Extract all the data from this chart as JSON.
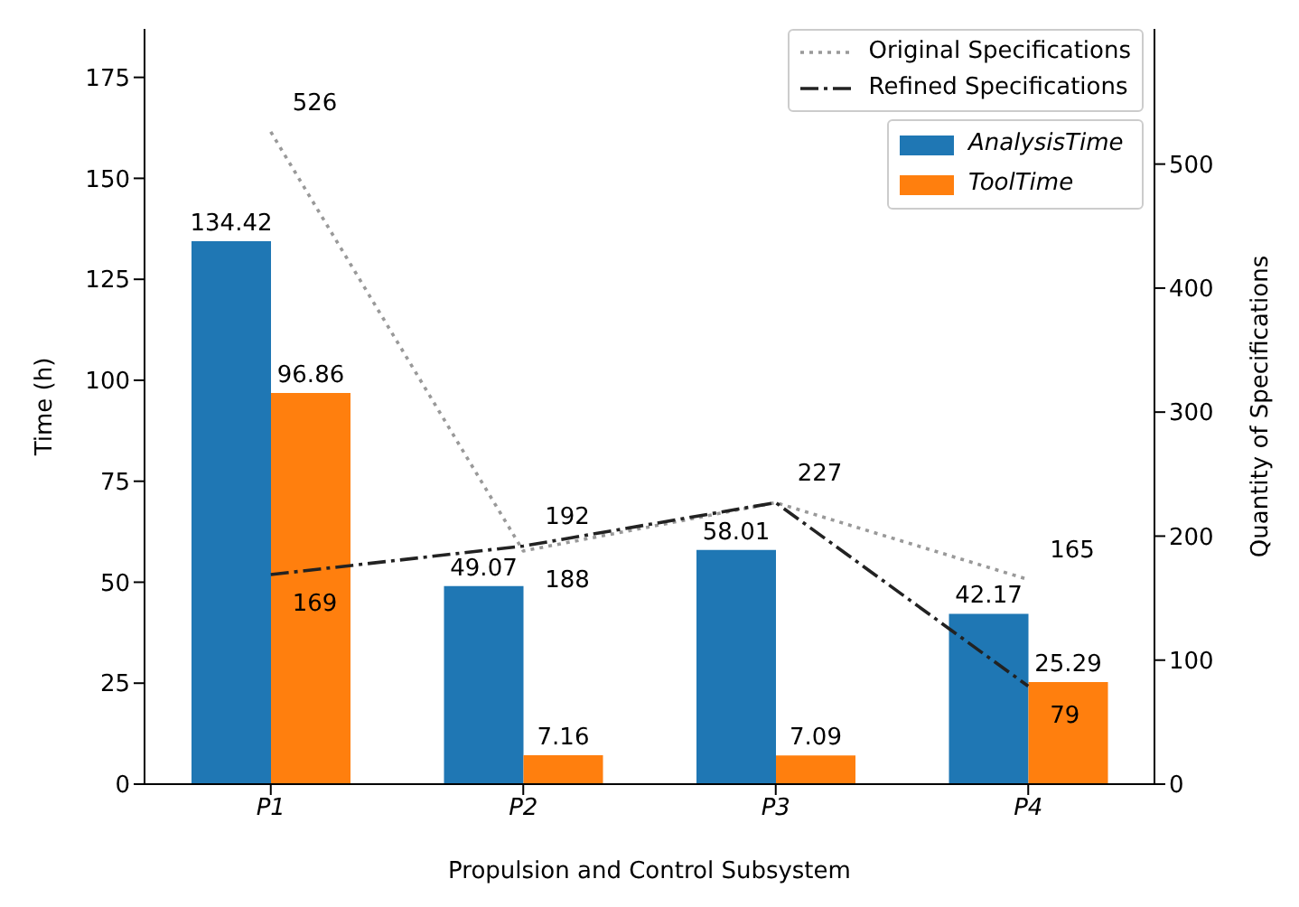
{
  "chart_data": {
    "type": "bar",
    "xlabel": "Propulsion and Control Subsystem",
    "ylabel": "Time (h)",
    "y2label": "Quantity of Specifications",
    "categories": [
      "P1",
      "P2",
      "P3",
      "P4"
    ],
    "series": [
      {
        "name": "AnalysisTime",
        "color": "#1f77b4",
        "values": [
          134.42,
          49.07,
          58.01,
          42.17
        ],
        "value_labels": [
          "134.42",
          "49.07",
          "58.01",
          "42.17"
        ]
      },
      {
        "name": "ToolTime",
        "color": "#ff7f0e",
        "values": [
          96.86,
          7.16,
          7.09,
          25.29
        ],
        "value_labels": [
          "96.86",
          "7.16",
          "7.09",
          "25.29"
        ]
      },
      {
        "name": "Original Specifications",
        "type": "line",
        "axis": "y2",
        "line_style": "dotted",
        "color": "#999999",
        "values": [
          526,
          188,
          227,
          165
        ],
        "value_labels": [
          "526",
          "188",
          "227",
          "165"
        ]
      },
      {
        "name": "Refined Specifications",
        "type": "line",
        "axis": "y2",
        "line_style": "dashed",
        "color": "#222222",
        "values": [
          169,
          192,
          227,
          79
        ],
        "value_labels": [
          "169",
          "192",
          null,
          "79"
        ]
      }
    ],
    "ylim": [
      0,
      187
    ],
    "yticks": [
      0,
      25,
      50,
      75,
      100,
      125,
      150,
      175
    ],
    "y2lim": [
      0,
      609
    ],
    "y2ticks": [
      0,
      100,
      200,
      300,
      400,
      500
    ],
    "legend": "top right"
  }
}
